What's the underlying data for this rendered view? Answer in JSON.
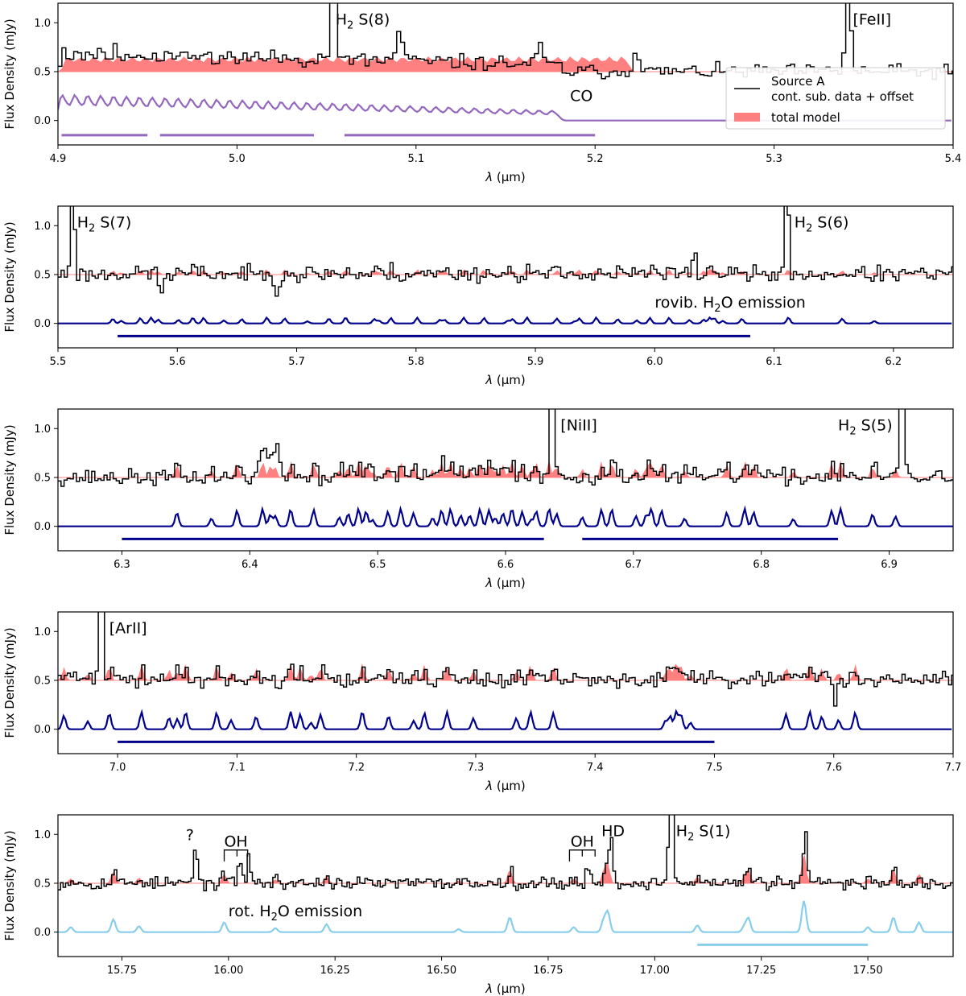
{
  "figure": {
    "legend": {
      "entries": [
        {
          "label_line1": "Source A",
          "label_line2": "cont. sub. data + offset",
          "color": "#000000",
          "kind": "line"
        },
        {
          "label": "total model",
          "color": "#ff8080",
          "kind": "patch"
        }
      ]
    }
  },
  "chart_data": [
    {
      "type": "line",
      "xlabel": "λ (μm)",
      "ylabel": "Flux Density (mJy)",
      "xlim": [
        4.9,
        5.4
      ],
      "ylim": [
        -0.25,
        1.2
      ],
      "xticks": [
        4.9,
        5.0,
        5.1,
        5.2,
        5.3,
        5.4
      ],
      "xtick_labels": [
        "4.9",
        "5.0",
        "5.1",
        "5.2",
        "5.3",
        "5.4"
      ],
      "yticks": [
        0.0,
        0.5,
        1.0
      ],
      "ytick_labels": [
        "0.0",
        "0.5",
        "1.0"
      ],
      "data_offset": 0.5,
      "data_noise": 0.045,
      "data_step": 0.0022,
      "seed": 11,
      "data_lines": [
        {
          "x": 5.0525,
          "peak": 1.6,
          "width": 0.0012
        },
        {
          "x": 5.3402,
          "peak": 1.6,
          "width": 0.0012
        },
        {
          "x": 5.09,
          "peak": 0.28,
          "width": 0.002
        },
        {
          "x": 5.222,
          "peak": 0.28,
          "width": 0.0015
        },
        {
          "x": 5.168,
          "peak": 0.2,
          "width": 0.0015
        }
      ],
      "model": {
        "spacing": 0.0072,
        "start": 4.905,
        "end": 5.22,
        "amp": 0.14,
        "width": 0.0016
      },
      "component": {
        "name": "CO",
        "color": "#9467bd",
        "spacing": 0.0072,
        "start": 4.902,
        "end": 5.176,
        "amp_start": 0.24,
        "amp_end": 0.09
      },
      "ranges": [
        [
          4.902,
          4.95
        ],
        [
          4.957,
          5.043
        ],
        [
          5.06,
          5.2
        ]
      ],
      "range_y": -0.15,
      "range_color": "#9467bd",
      "annotations": [
        {
          "text": "H",
          "sub": "2",
          "rest": " S(8)",
          "x": 5.055,
          "y": 0.98,
          "color": "#000000"
        },
        {
          "text": "[FeII]",
          "x": 5.344,
          "y": 0.98,
          "color": "#000000"
        },
        {
          "text": "CO",
          "x": 5.186,
          "y": 0.2,
          "color": "#9467bd"
        }
      ]
    },
    {
      "type": "line",
      "xlabel": "λ (μm)",
      "ylabel": "Flux Density (mJy)",
      "xlim": [
        5.5,
        6.25
      ],
      "ylim": [
        -0.25,
        1.2
      ],
      "xticks": [
        5.5,
        5.6,
        5.7,
        5.8,
        5.9,
        6.0,
        6.1,
        6.2
      ],
      "xtick_labels": [
        "5.5",
        "5.6",
        "5.7",
        "5.8",
        "5.9",
        "6.0",
        "6.1",
        "6.2"
      ],
      "yticks": [
        0.0,
        0.5,
        1.0
      ],
      "ytick_labels": [
        "0.0",
        "0.5",
        "1.0"
      ],
      "data_offset": 0.5,
      "data_noise": 0.05,
      "data_step": 0.0026,
      "seed": 23,
      "data_lines": [
        {
          "x": 5.511,
          "peak": 1.6,
          "width": 0.0013
        },
        {
          "x": 6.109,
          "peak": 1.6,
          "width": 0.0013
        },
        {
          "x": 5.585,
          "peak": -0.25,
          "width": 0.0015
        },
        {
          "x": 5.683,
          "peak": -0.2,
          "width": 0.0015
        },
        {
          "x": 6.032,
          "peak": 0.22,
          "width": 0.0015
        }
      ],
      "lines": [
        5.546,
        5.553,
        5.569,
        5.578,
        5.584,
        5.601,
        5.613,
        5.622,
        5.639,
        5.654,
        5.675,
        5.69,
        5.709,
        5.727,
        5.741,
        5.765,
        5.769,
        5.779,
        5.801,
        5.82,
        5.824,
        5.84,
        5.857,
        5.877,
        5.881,
        5.893,
        5.918,
        5.933,
        5.937,
        5.951,
        5.969,
        5.985,
        5.996,
        6.012,
        6.029,
        6.041,
        6.046,
        6.05,
        6.057,
        6.073,
        6.112,
        6.157,
        6.184
      ],
      "line_amp": 0.06,
      "line_width": 0.0014,
      "component": {
        "name": "rovib. H2O emission",
        "color": "#00008b"
      },
      "ranges": [
        [
          5.55,
          6.08
        ]
      ],
      "range_y": -0.13,
      "range_color": "#00008b",
      "annotations": [
        {
          "text": "H",
          "sub": "2",
          "rest": " S(7)",
          "x": 5.516,
          "y": 0.98,
          "color": "#000000"
        },
        {
          "text": "H",
          "sub": "2",
          "rest": " S(6)",
          "x": 6.117,
          "y": 0.98,
          "color": "#000000"
        },
        {
          "text": "rovib. H",
          "sub": "2",
          "rest": "O emission",
          "x": 6.0,
          "y": 0.16,
          "color": "#00008b"
        }
      ]
    },
    {
      "type": "line",
      "xlabel": "λ (μm)",
      "ylabel": "Flux Density (mJy)",
      "xlim": [
        6.25,
        6.95
      ],
      "ylim": [
        -0.25,
        1.2
      ],
      "xticks": [
        6.3,
        6.4,
        6.5,
        6.6,
        6.7,
        6.8,
        6.9
      ],
      "xtick_labels": [
        "6.3",
        "6.4",
        "6.5",
        "6.6",
        "6.7",
        "6.8",
        "6.9"
      ],
      "yticks": [
        0.0,
        0.5,
        1.0
      ],
      "ytick_labels": [
        "0.0",
        "0.5",
        "1.0"
      ],
      "data_offset": 0.5,
      "data_noise": 0.05,
      "data_step": 0.0024,
      "seed": 37,
      "data_lines": [
        {
          "x": 6.635,
          "peak": 1.6,
          "width": 0.0012
        },
        {
          "x": 6.909,
          "peak": 1.6,
          "width": 0.0013
        },
        {
          "x": 6.41,
          "peak": 0.2,
          "width": 0.004
        },
        {
          "x": 6.42,
          "peak": 0.3,
          "width": 0.0015
        }
      ],
      "lines": [
        6.343,
        6.37,
        6.39,
        6.41,
        6.416,
        6.42,
        6.432,
        6.45,
        6.47,
        6.477,
        6.485,
        6.491,
        6.496,
        6.508,
        6.518,
        6.528,
        6.543,
        6.55,
        6.557,
        6.565,
        6.572,
        6.58,
        6.587,
        6.592,
        6.598,
        6.605,
        6.613,
        6.62,
        6.624,
        6.634,
        6.64,
        6.66,
        6.675,
        6.683,
        6.702,
        6.71,
        6.714,
        6.722,
        6.74,
        6.773,
        6.787,
        6.794,
        6.825,
        6.855,
        6.862,
        6.887,
        6.905
      ],
      "line_amp": 0.18,
      "line_width": 0.0014,
      "component": {
        "name": "rovib. H2O emission",
        "color": "#00008b"
      },
      "ranges": [
        [
          6.3,
          6.63
        ],
        [
          6.66,
          6.86
        ]
      ],
      "range_y": -0.13,
      "range_color": "#00008b",
      "annotations": [
        {
          "text": "[NiII]",
          "x": 6.643,
          "y": 0.98,
          "color": "#000000"
        },
        {
          "text": "H",
          "sub": "2",
          "rest": " S(5)",
          "x": 6.86,
          "y": 0.98,
          "color": "#000000"
        }
      ]
    },
    {
      "type": "line",
      "xlabel": "λ (μm)",
      "ylabel": "Flux Density (mJy)",
      "xlim": [
        6.95,
        7.7
      ],
      "ylim": [
        -0.25,
        1.2
      ],
      "xticks": [
        7.0,
        7.1,
        7.2,
        7.3,
        7.4,
        7.5,
        7.6,
        7.7
      ],
      "xtick_labels": [
        "7.0",
        "7.1",
        "7.2",
        "7.3",
        "7.4",
        "7.5",
        "7.6",
        "7.7"
      ],
      "yticks": [
        0.0,
        0.5,
        1.0
      ],
      "ytick_labels": [
        "0.0",
        "0.5",
        "1.0"
      ],
      "data_offset": 0.5,
      "data_noise": 0.05,
      "data_step": 0.0026,
      "seed": 41,
      "data_lines": [
        {
          "x": 6.985,
          "peak": 1.6,
          "width": 0.0013
        },
        {
          "x": 7.6,
          "peak": -0.22,
          "width": 0.0015
        }
      ],
      "lines": [
        6.955,
        6.975,
        6.993,
        7.02,
        7.043,
        7.05,
        7.057,
        7.083,
        7.095,
        7.116,
        7.145,
        7.153,
        7.162,
        7.17,
        7.205,
        7.227,
        7.248,
        7.257,
        7.276,
        7.298,
        7.334,
        7.346,
        7.365,
        7.459,
        7.463,
        7.468,
        7.472,
        7.48,
        7.56,
        7.58,
        7.59,
        7.604,
        7.618
      ],
      "line_amp": 0.18,
      "line_width": 0.0015,
      "component": {
        "name": "rovib. H2O emission",
        "color": "#00008b"
      },
      "ranges": [
        [
          7.0,
          7.5
        ]
      ],
      "range_y": -0.13,
      "range_color": "#00008b",
      "annotations": [
        {
          "text": "[ArII]",
          "x": 6.993,
          "y": 0.98,
          "color": "#000000"
        }
      ]
    },
    {
      "type": "line",
      "xlabel": "λ (μm)",
      "ylabel": "Flux Density (mJy)",
      "xlim": [
        15.6,
        17.7
      ],
      "ylim": [
        -0.25,
        1.2
      ],
      "xticks": [
        15.75,
        16.0,
        16.25,
        16.5,
        16.75,
        17.0,
        17.25,
        17.5
      ],
      "xtick_labels": [
        "15.75",
        "16.00",
        "16.25",
        "16.50",
        "16.75",
        "17.00",
        "17.25",
        "17.50"
      ],
      "yticks": [
        0.0,
        0.5,
        1.0
      ],
      "ytick_labels": [
        "0.0",
        "0.5",
        "1.0"
      ],
      "data_offset": 0.5,
      "data_noise": 0.04,
      "data_step": 0.006,
      "seed": 53,
      "data_lines": [
        {
          "x": 17.035,
          "peak": 1.6,
          "width": 0.004
        },
        {
          "x": 15.92,
          "peak": 0.38,
          "width": 0.004
        },
        {
          "x": 16.025,
          "peak": 0.25,
          "width": 0.004
        },
        {
          "x": 16.045,
          "peak": 0.3,
          "width": 0.004
        },
        {
          "x": 16.84,
          "peak": 0.2,
          "width": 0.004
        },
        {
          "x": 16.895,
          "peak": 0.35,
          "width": 0.004
        },
        {
          "x": 17.35,
          "peak": 0.22,
          "width": 0.004
        }
      ],
      "lines": [
        15.63,
        15.73,
        15.79,
        15.99,
        16.11,
        16.23,
        16.54,
        16.66,
        16.81,
        16.88,
        16.89,
        17.1,
        17.21,
        17.22,
        17.35,
        17.5,
        17.56,
        17.62
      ],
      "line_amps": [
        0.05,
        0.13,
        0.06,
        0.1,
        0.04,
        0.08,
        0.03,
        0.15,
        0.05,
        0.12,
        0.2,
        0.07,
        0.06,
        0.14,
        0.32,
        0.05,
        0.15,
        0.1
      ],
      "line_width": 0.005,
      "component": {
        "name": "rot. H2O emission",
        "color": "#87ceeb"
      },
      "ranges": [
        [
          17.1,
          17.5
        ]
      ],
      "range_y": -0.13,
      "range_color": "#87ceeb",
      "brackets": [
        {
          "x1": 15.99,
          "x2": 16.045,
          "xm": 16.02,
          "y": 0.84,
          "label": "OH"
        },
        {
          "x1": 16.8,
          "x2": 16.86,
          "xm": 16.83,
          "y": 0.84,
          "label": "OH"
        }
      ],
      "annotations": [
        {
          "text": "?",
          "x": 15.9,
          "y": 0.94,
          "color": "#000000"
        },
        {
          "text": "HD",
          "x": 16.875,
          "y": 0.98,
          "color": "#000000"
        },
        {
          "text": "H",
          "sub": "2",
          "rest": " S(1)",
          "x": 17.05,
          "y": 0.98,
          "color": "#000000"
        },
        {
          "text": "rot. H",
          "sub": "2",
          "rest": "O emission",
          "x": 16.0,
          "y": 0.16,
          "color": "#87ceeb"
        }
      ]
    }
  ]
}
